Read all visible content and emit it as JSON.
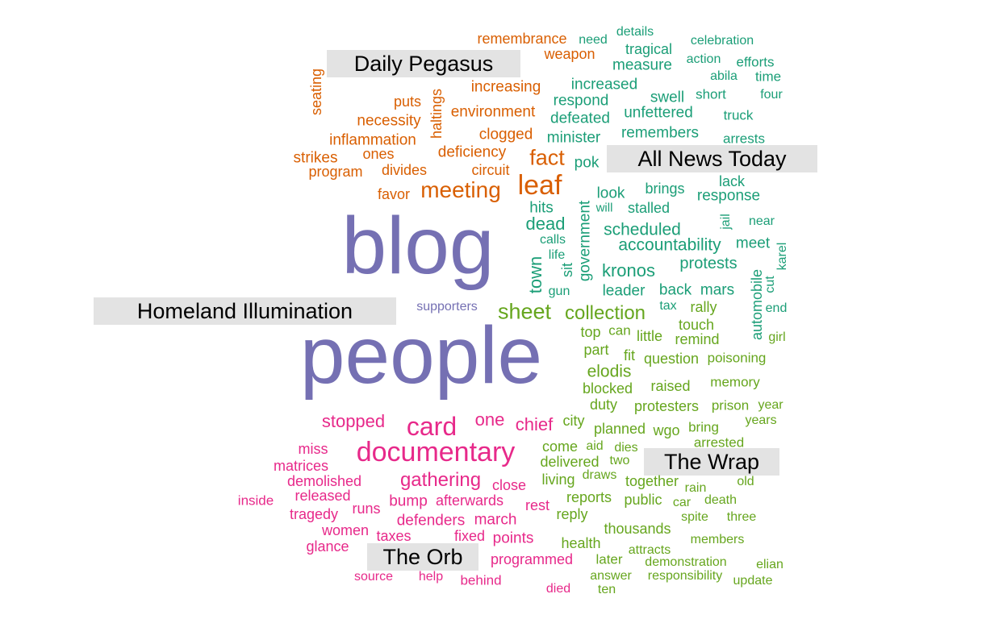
{
  "colors": {
    "orange": "#d95f02",
    "teal": "#1b9e77",
    "purple": "#7570b3",
    "green": "#66a61e",
    "pink": "#e7298a",
    "label_bg": "#e3e3e3"
  },
  "sources": {
    "daily_pegasus": "Daily Pegasus",
    "all_news_today": "All News Today",
    "homeland_illumination": "Homeland Illumination",
    "the_wrap": "The Wrap",
    "the_orb": "The Orb"
  },
  "words": [
    {
      "text": "remembrance",
      "color": "orange"
    },
    {
      "text": "weapon",
      "color": "orange"
    },
    {
      "text": "seating",
      "color": "orange"
    },
    {
      "text": "haltings",
      "color": "orange"
    },
    {
      "text": "increasing",
      "color": "orange"
    },
    {
      "text": "puts",
      "color": "orange"
    },
    {
      "text": "environment",
      "color": "orange"
    },
    {
      "text": "necessity",
      "color": "orange"
    },
    {
      "text": "clogged",
      "color": "orange"
    },
    {
      "text": "inflammation",
      "color": "orange"
    },
    {
      "text": "deficiency",
      "color": "orange"
    },
    {
      "text": "fact",
      "color": "orange"
    },
    {
      "text": "strikes",
      "color": "orange"
    },
    {
      "text": "ones",
      "color": "orange"
    },
    {
      "text": "program",
      "color": "orange"
    },
    {
      "text": "divides",
      "color": "orange"
    },
    {
      "text": "circuit",
      "color": "orange"
    },
    {
      "text": "leaf",
      "color": "orange"
    },
    {
      "text": "meeting",
      "color": "orange"
    },
    {
      "text": "favor",
      "color": "orange"
    },
    {
      "text": "need",
      "color": "teal"
    },
    {
      "text": "details",
      "color": "teal"
    },
    {
      "text": "tragical",
      "color": "teal"
    },
    {
      "text": "celebration",
      "color": "teal"
    },
    {
      "text": "measure",
      "color": "teal"
    },
    {
      "text": "action",
      "color": "teal"
    },
    {
      "text": "efforts",
      "color": "teal"
    },
    {
      "text": "abila",
      "color": "teal"
    },
    {
      "text": "time",
      "color": "teal"
    },
    {
      "text": "increased",
      "color": "teal"
    },
    {
      "text": "swell",
      "color": "teal"
    },
    {
      "text": "short",
      "color": "teal"
    },
    {
      "text": "four",
      "color": "teal"
    },
    {
      "text": "respond",
      "color": "teal"
    },
    {
      "text": "unfettered",
      "color": "teal"
    },
    {
      "text": "truck",
      "color": "teal"
    },
    {
      "text": "defeated",
      "color": "teal"
    },
    {
      "text": "minister",
      "color": "teal"
    },
    {
      "text": "remembers",
      "color": "teal"
    },
    {
      "text": "arrests",
      "color": "teal"
    },
    {
      "text": "pok",
      "color": "teal"
    },
    {
      "text": "lack",
      "color": "teal"
    },
    {
      "text": "government",
      "color": "teal"
    },
    {
      "text": "look",
      "color": "teal"
    },
    {
      "text": "brings",
      "color": "teal"
    },
    {
      "text": "response",
      "color": "teal"
    },
    {
      "text": "hits",
      "color": "teal"
    },
    {
      "text": "will",
      "color": "teal"
    },
    {
      "text": "stalled",
      "color": "teal"
    },
    {
      "text": "jail",
      "color": "teal"
    },
    {
      "text": "near",
      "color": "teal"
    },
    {
      "text": "dead",
      "color": "teal"
    },
    {
      "text": "scheduled",
      "color": "teal"
    },
    {
      "text": "calls",
      "color": "teal"
    },
    {
      "text": "accountability",
      "color": "teal"
    },
    {
      "text": "meet",
      "color": "teal"
    },
    {
      "text": "town",
      "color": "teal"
    },
    {
      "text": "life",
      "color": "teal"
    },
    {
      "text": "sit",
      "color": "teal"
    },
    {
      "text": "karel",
      "color": "teal"
    },
    {
      "text": "protests",
      "color": "teal"
    },
    {
      "text": "kronos",
      "color": "teal"
    },
    {
      "text": "automobile",
      "color": "teal"
    },
    {
      "text": "cut",
      "color": "teal"
    },
    {
      "text": "leader",
      "color": "teal"
    },
    {
      "text": "back",
      "color": "teal"
    },
    {
      "text": "mars",
      "color": "teal"
    },
    {
      "text": "gun",
      "color": "teal"
    },
    {
      "text": "tax",
      "color": "teal"
    },
    {
      "text": "end",
      "color": "teal"
    },
    {
      "text": "blog",
      "color": "purple"
    },
    {
      "text": "supporters",
      "color": "purple"
    },
    {
      "text": "people",
      "color": "purple"
    },
    {
      "text": "sheet",
      "color": "green"
    },
    {
      "text": "collection",
      "color": "green"
    },
    {
      "text": "rally",
      "color": "green"
    },
    {
      "text": "touch",
      "color": "green"
    },
    {
      "text": "top",
      "color": "green"
    },
    {
      "text": "can",
      "color": "green"
    },
    {
      "text": "little",
      "color": "green"
    },
    {
      "text": "remind",
      "color": "green"
    },
    {
      "text": "girl",
      "color": "green"
    },
    {
      "text": "part",
      "color": "green"
    },
    {
      "text": "fit",
      "color": "green"
    },
    {
      "text": "question",
      "color": "green"
    },
    {
      "text": "poisoning",
      "color": "green"
    },
    {
      "text": "elodis",
      "color": "green"
    },
    {
      "text": "memory",
      "color": "green"
    },
    {
      "text": "blocked",
      "color": "green"
    },
    {
      "text": "raised",
      "color": "green"
    },
    {
      "text": "duty",
      "color": "green"
    },
    {
      "text": "protesters",
      "color": "green"
    },
    {
      "text": "prison",
      "color": "green"
    },
    {
      "text": "year",
      "color": "green"
    },
    {
      "text": "city",
      "color": "green"
    },
    {
      "text": "years",
      "color": "green"
    },
    {
      "text": "planned",
      "color": "green"
    },
    {
      "text": "wgo",
      "color": "green"
    },
    {
      "text": "bring",
      "color": "green"
    },
    {
      "text": "come",
      "color": "green"
    },
    {
      "text": "aid",
      "color": "green"
    },
    {
      "text": "dies",
      "color": "green"
    },
    {
      "text": "arrested",
      "color": "green"
    },
    {
      "text": "delivered",
      "color": "green"
    },
    {
      "text": "two",
      "color": "green"
    },
    {
      "text": "living",
      "color": "green"
    },
    {
      "text": "draws",
      "color": "green"
    },
    {
      "text": "together",
      "color": "green"
    },
    {
      "text": "old",
      "color": "green"
    },
    {
      "text": "rain",
      "color": "green"
    },
    {
      "text": "reports",
      "color": "green"
    },
    {
      "text": "public",
      "color": "green"
    },
    {
      "text": "car",
      "color": "green"
    },
    {
      "text": "death",
      "color": "green"
    },
    {
      "text": "reply",
      "color": "green"
    },
    {
      "text": "spite",
      "color": "green"
    },
    {
      "text": "three",
      "color": "green"
    },
    {
      "text": "thousands",
      "color": "green"
    },
    {
      "text": "health",
      "color": "green"
    },
    {
      "text": "members",
      "color": "green"
    },
    {
      "text": "attracts",
      "color": "green"
    },
    {
      "text": "later",
      "color": "green"
    },
    {
      "text": "demonstration",
      "color": "green"
    },
    {
      "text": "elian",
      "color": "green"
    },
    {
      "text": "answer",
      "color": "green"
    },
    {
      "text": "responsibility",
      "color": "green"
    },
    {
      "text": "update",
      "color": "green"
    },
    {
      "text": "ten",
      "color": "green"
    },
    {
      "text": "stopped",
      "color": "pink"
    },
    {
      "text": "card",
      "color": "pink"
    },
    {
      "text": "one",
      "color": "pink"
    },
    {
      "text": "chief",
      "color": "pink"
    },
    {
      "text": "documentary",
      "color": "pink"
    },
    {
      "text": "miss",
      "color": "pink"
    },
    {
      "text": "matrices",
      "color": "pink"
    },
    {
      "text": "gathering",
      "color": "pink"
    },
    {
      "text": "demolished",
      "color": "pink"
    },
    {
      "text": "close",
      "color": "pink"
    },
    {
      "text": "released",
      "color": "pink"
    },
    {
      "text": "afterwards",
      "color": "pink"
    },
    {
      "text": "inside",
      "color": "pink"
    },
    {
      "text": "bump",
      "color": "pink"
    },
    {
      "text": "rest",
      "color": "pink"
    },
    {
      "text": "tragedy",
      "color": "pink"
    },
    {
      "text": "runs",
      "color": "pink"
    },
    {
      "text": "defenders",
      "color": "pink"
    },
    {
      "text": "march",
      "color": "pink"
    },
    {
      "text": "women",
      "color": "pink"
    },
    {
      "text": "taxes",
      "color": "pink"
    },
    {
      "text": "fixed",
      "color": "pink"
    },
    {
      "text": "points",
      "color": "pink"
    },
    {
      "text": "glance",
      "color": "pink"
    },
    {
      "text": "programmed",
      "color": "pink"
    },
    {
      "text": "source",
      "color": "pink"
    },
    {
      "text": "help",
      "color": "pink"
    },
    {
      "text": "behind",
      "color": "pink"
    },
    {
      "text": "died",
      "color": "pink"
    }
  ]
}
